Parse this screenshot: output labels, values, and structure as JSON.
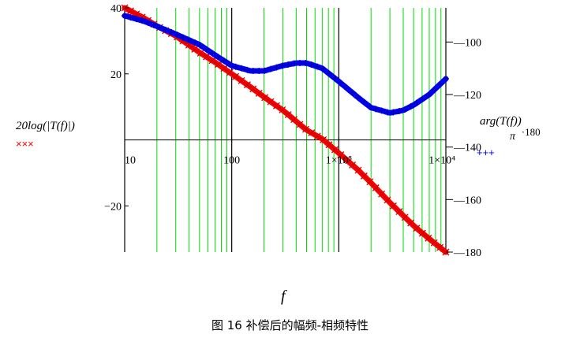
{
  "caption": "图 16 补偿后的幅频-相频特性",
  "chart_data": {
    "type": "line",
    "x_scale": "log",
    "xlim": [
      10,
      10000
    ],
    "xlabel": "f",
    "x_tick_labels": [
      "10",
      "100",
      "1×10³",
      "1×10⁴"
    ],
    "left_axis": {
      "label": "20log(|T(f)|)",
      "ylim": [
        -34,
        40
      ],
      "tick_labels": [
        "40",
        "20",
        "−20"
      ]
    },
    "right_axis": {
      "label_num": "arg(T(f))",
      "label_den": "π",
      "label_mult": "·180",
      "ylim": [
        -180,
        -87
      ],
      "tick_labels": [
        "100",
        "120",
        "140",
        "160",
        "180"
      ]
    },
    "legend": [
      {
        "marker": "×××",
        "color": "#ff0000"
      },
      {
        "marker": "+++",
        "color": "#0000ff"
      }
    ],
    "series": [
      {
        "axis": "left",
        "color": "#ff0000",
        "x": [
          10,
          15,
          20,
          30,
          50,
          70,
          100,
          150,
          200,
          300,
          500,
          700,
          1000,
          1500,
          2000,
          3000,
          5000,
          7000,
          10000
        ],
        "y": [
          40,
          37,
          34.5,
          31.5,
          26.5,
          23.5,
          20,
          16,
          13,
          9,
          3,
          0.3,
          -4,
          -9,
          -13,
          -19,
          -26,
          -30,
          -34
        ]
      },
      {
        "axis": "right",
        "color": "#0000ff",
        "x": [
          10,
          15,
          20,
          30,
          50,
          70,
          100,
          150,
          200,
          300,
          400,
          500,
          700,
          1000,
          1500,
          2000,
          3000,
          4000,
          5000,
          7000,
          10000
        ],
        "y": [
          -90,
          -92,
          -94,
          -97,
          -101,
          -105,
          -109,
          -111,
          -111,
          -109,
          -108,
          -108,
          -110,
          -115,
          -121,
          -125,
          -127,
          -126,
          -124,
          -120,
          -114
        ]
      }
    ]
  }
}
